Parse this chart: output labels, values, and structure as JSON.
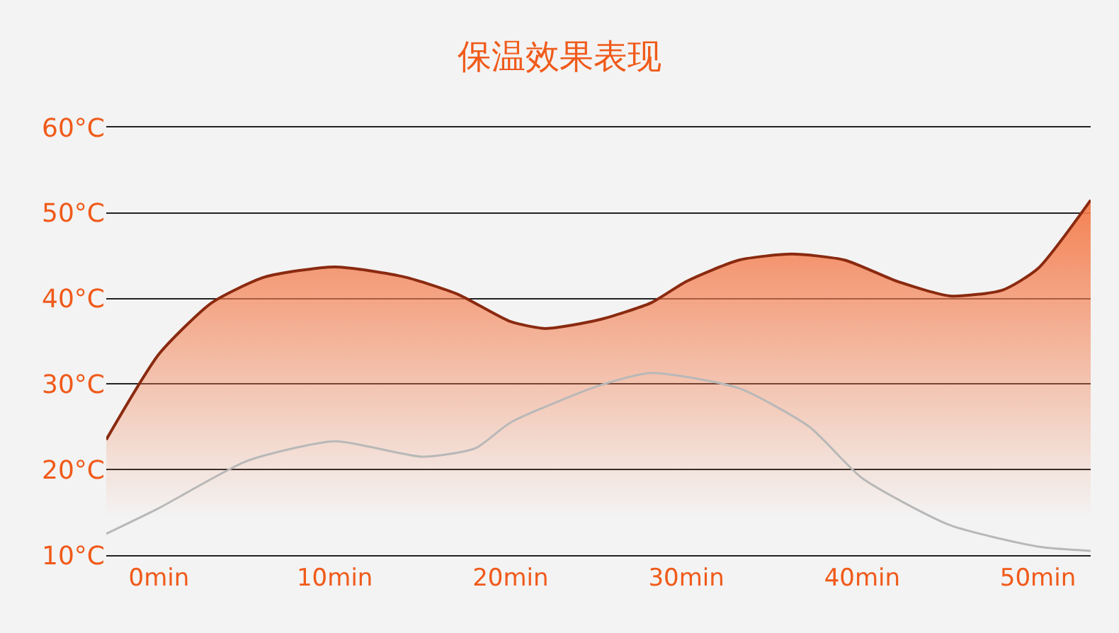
{
  "chart_data": {
    "type": "line",
    "title": "保温效果表现",
    "xlim": [
      -3,
      53
    ],
    "xticks": [
      {
        "value": 0,
        "label": "0min"
      },
      {
        "value": 10,
        "label": "10min"
      },
      {
        "value": 20,
        "label": "20min"
      },
      {
        "value": 30,
        "label": "30min"
      },
      {
        "value": 40,
        "label": "40min"
      },
      {
        "value": 50,
        "label": "50min"
      }
    ],
    "ylim": [
      10,
      60
    ],
    "yticks": [
      {
        "value": 10,
        "label": "10°C"
      },
      {
        "value": 20,
        "label": "20°C"
      },
      {
        "value": 30,
        "label": "30°C"
      },
      {
        "value": 40,
        "label": "40°C"
      },
      {
        "value": 50,
        "label": "50°C"
      },
      {
        "value": 60,
        "label": "60°C"
      }
    ],
    "grid": "y",
    "marker": "none",
    "line_style": "solid",
    "series": [
      {
        "type": "area",
        "color": "#f47b4a",
        "x": [
          -3,
          0,
          3,
          6,
          10,
          14,
          17,
          20,
          22,
          25,
          28,
          30,
          33,
          36,
          39,
          42,
          45,
          48,
          50,
          53
        ],
        "values": [
          23.5,
          33.5,
          39.5,
          42.5,
          43.7,
          42.5,
          40.5,
          37.3,
          36.5,
          37.5,
          39.5,
          42,
          44.5,
          45.2,
          44.5,
          42,
          40.3,
          41,
          43.5,
          51.5
        ]
      },
      {
        "color": "#b8b8b8",
        "x": [
          -3,
          0,
          5,
          10,
          15,
          18,
          20,
          25,
          28,
          33,
          37,
          40,
          45,
          50,
          53
        ],
        "values": [
          12.5,
          15.5,
          21,
          23.3,
          21.5,
          22.5,
          25.5,
          29.8,
          31.3,
          29.5,
          25,
          19,
          13.5,
          11,
          10.5
        ]
      }
    ]
  }
}
